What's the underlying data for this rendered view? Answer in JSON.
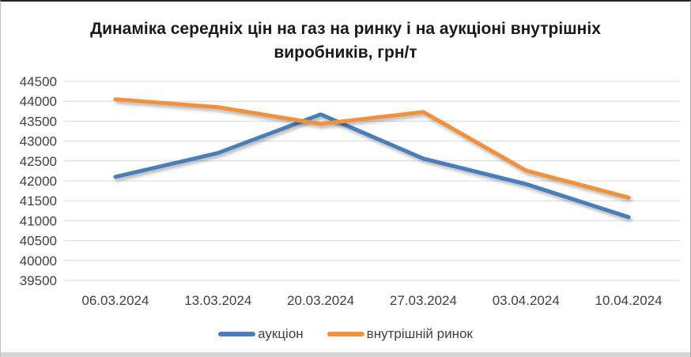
{
  "window": {
    "background": "#ffffff",
    "border_top_color": "#262626",
    "border_side_color": "#bfbfbf",
    "bottom_strip_color": "#d6d6d6"
  },
  "chart_data": {
    "type": "line",
    "title": "Динаміка середніх цін на газ на ринку і на аукціоні внутрішніх\nвиробників, грн/т",
    "categories": [
      "06.03.2024",
      "13.03.2024",
      "20.03.2024",
      "27.03.2024",
      "03.04.2024",
      "10.04.2024"
    ],
    "series": [
      {
        "name": "аукціон",
        "color": "#4A7EBB",
        "values": [
          42100,
          42700,
          43670,
          42560,
          41920,
          41090
        ]
      },
      {
        "name": "внутрішній ринок",
        "color": "#F0913D",
        "values": [
          44050,
          43850,
          43430,
          43730,
          42260,
          41580
        ]
      }
    ],
    "ylabel": "",
    "xlabel": "",
    "ylim": [
      39500,
      44500
    ],
    "ytick_step": 500,
    "y_ticks": [
      44500,
      44000,
      43500,
      43000,
      42500,
      42000,
      41500,
      41000,
      40500,
      40000,
      39500
    ],
    "grid": "horizontal-only",
    "gridline_color": "#d9d9d9",
    "axis_label_color": "#404040",
    "legend_position": "bottom",
    "line_width": 5,
    "line_shadow": true
  }
}
